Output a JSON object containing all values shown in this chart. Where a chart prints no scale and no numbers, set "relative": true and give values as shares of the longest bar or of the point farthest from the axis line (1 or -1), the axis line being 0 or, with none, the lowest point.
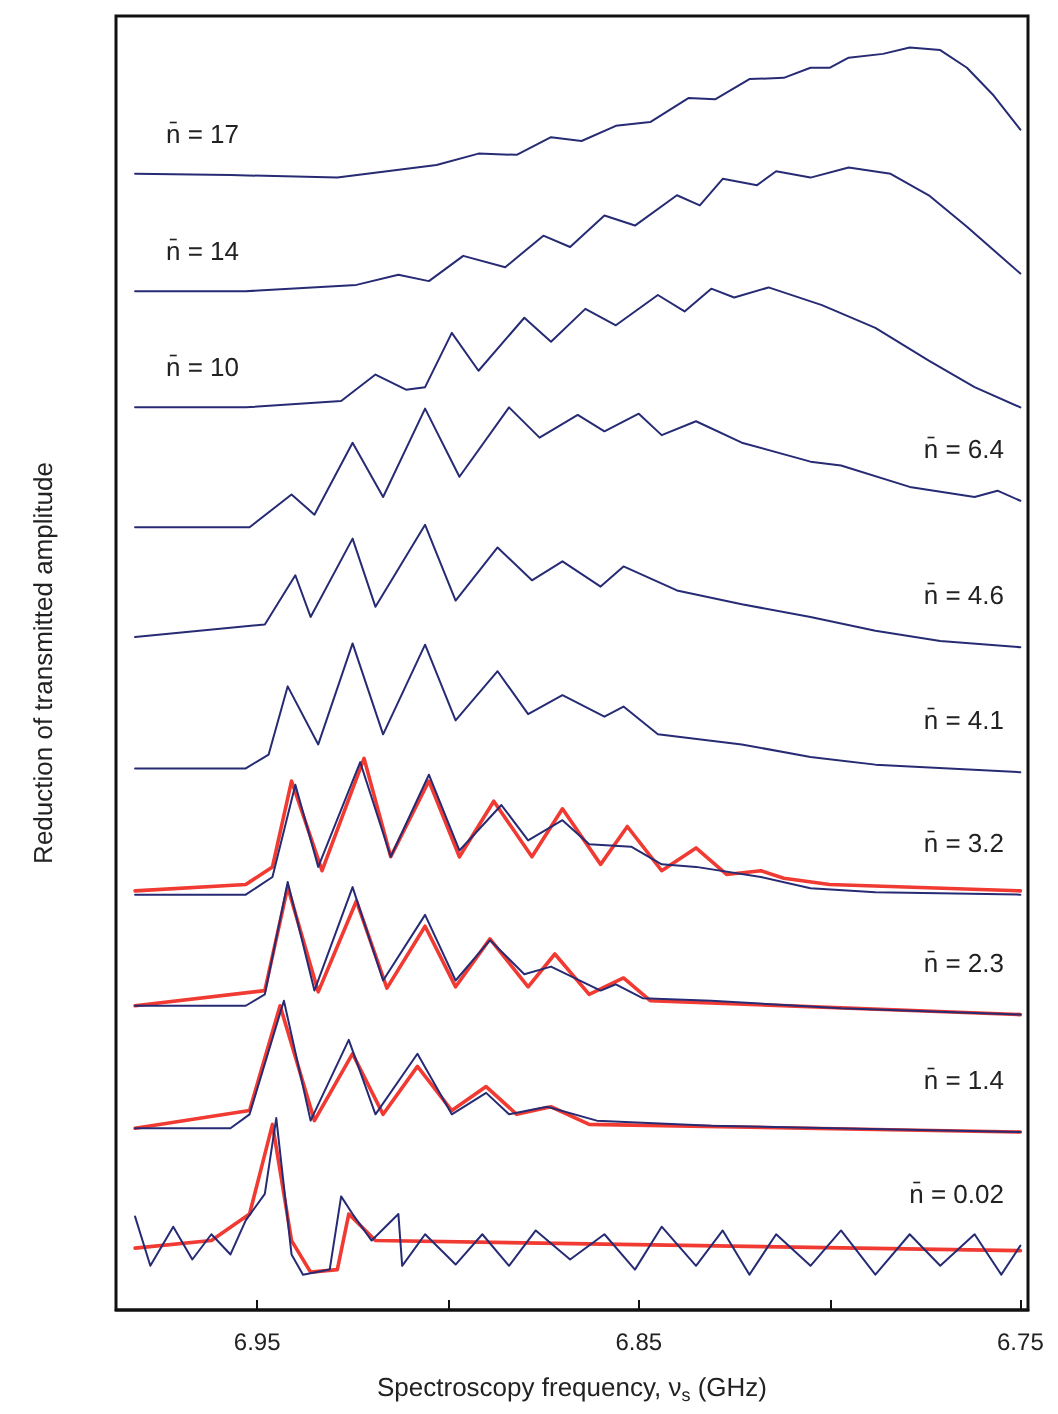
{
  "chart_data": {
    "type": "line",
    "relative": true,
    "marker": "none",
    "line_style": "solid",
    "tick_labels": "x",
    "xlabel": "Spectroscopy frequency, ν$_{s}$ (GHz)",
    "ylabel": "Reduction of transmitted amplitude",
    "xlim": [
      6.987,
      6.748
    ],
    "xticks": [
      6.95,
      {
        "value": 6.9,
        "label": null
      },
      6.85,
      {
        "value": 6.8,
        "label": null
      },
      6.75
    ],
    "series": [
      {
        "name": "n̄ = 17",
        "color": "#262b74",
        "x": [
          6.982,
          6.957,
          6.929,
          6.903,
          6.892,
          6.882,
          6.873,
          6.865,
          6.856,
          6.847,
          6.837,
          6.83,
          6.821,
          6.812,
          6.805,
          6.8,
          6.795,
          6.786,
          6.779,
          6.771,
          6.764,
          6.757,
          6.75
        ],
        "values": [
          0.9,
          0.899,
          0.897,
          0.907,
          0.916,
          0.915,
          0.929,
          0.926,
          0.938,
          0.941,
          0.96,
          0.959,
          0.975,
          0.976,
          0.984,
          0.984,
          0.992,
          0.995,
          1.0,
          0.998,
          0.984,
          0.962,
          0.935
        ]
      },
      {
        "name": "n̄ = 14",
        "color": "#262b74",
        "x": [
          6.982,
          6.953,
          6.924,
          6.913,
          6.905,
          6.896,
          6.885,
          6.875,
          6.868,
          6.859,
          6.851,
          6.84,
          6.834,
          6.828,
          6.819,
          6.814,
          6.805,
          6.795,
          6.784,
          6.774,
          6.764,
          6.75
        ],
        "values": [
          0.807,
          0.807,
          0.812,
          0.82,
          0.815,
          0.835,
          0.826,
          0.851,
          0.842,
          0.867,
          0.859,
          0.883,
          0.875,
          0.896,
          0.891,
          0.902,
          0.897,
          0.905,
          0.9,
          0.883,
          0.858,
          0.821
        ]
      },
      {
        "name": "n̄ = 10",
        "color": "#262b74",
        "x": [
          6.982,
          6.953,
          6.928,
          6.919,
          6.911,
          6.906,
          6.899,
          6.892,
          6.88,
          6.873,
          6.864,
          6.856,
          6.845,
          6.838,
          6.831,
          6.825,
          6.816,
          6.802,
          6.788,
          6.774,
          6.762,
          6.75
        ],
        "values": [
          0.715,
          0.715,
          0.72,
          0.741,
          0.729,
          0.731,
          0.774,
          0.744,
          0.786,
          0.767,
          0.793,
          0.78,
          0.804,
          0.791,
          0.809,
          0.802,
          0.81,
          0.796,
          0.778,
          0.752,
          0.731,
          0.715
        ]
      },
      {
        "name": "n̄ = 6.4",
        "color": "#262b74",
        "x": [
          6.982,
          6.952,
          6.941,
          6.935,
          6.925,
          6.917,
          6.906,
          6.897,
          6.884,
          6.876,
          6.866,
          6.859,
          6.85,
          6.844,
          6.835,
          6.823,
          6.805,
          6.797,
          6.779,
          6.762,
          6.756,
          6.75
        ],
        "values": [
          0.62,
          0.62,
          0.646,
          0.63,
          0.687,
          0.644,
          0.714,
          0.66,
          0.715,
          0.691,
          0.709,
          0.696,
          0.71,
          0.693,
          0.704,
          0.687,
          0.672,
          0.669,
          0.652,
          0.644,
          0.649,
          0.641
        ]
      },
      {
        "name": "n̄ = 4.6",
        "color": "#262b74",
        "x": [
          6.982,
          6.948,
          6.94,
          6.936,
          6.925,
          6.919,
          6.906,
          6.898,
          6.887,
          6.878,
          6.87,
          6.86,
          6.854,
          6.84,
          6.823,
          6.805,
          6.788,
          6.771,
          6.75
        ],
        "values": [
          0.533,
          0.543,
          0.582,
          0.549,
          0.611,
          0.557,
          0.622,
          0.562,
          0.604,
          0.578,
          0.593,
          0.573,
          0.589,
          0.57,
          0.559,
          0.549,
          0.538,
          0.53,
          0.525
        ]
      },
      {
        "name": "n̄ = 4.1",
        "color": "#262b74",
        "x": [
          6.982,
          6.953,
          6.947,
          6.942,
          6.934,
          6.925,
          6.917,
          6.906,
          6.898,
          6.887,
          6.879,
          6.87,
          6.859,
          6.854,
          6.845,
          6.823,
          6.805,
          6.788,
          6.75
        ],
        "values": [
          0.429,
          0.429,
          0.44,
          0.494,
          0.448,
          0.528,
          0.456,
          0.527,
          0.467,
          0.506,
          0.472,
          0.487,
          0.47,
          0.478,
          0.456,
          0.448,
          0.438,
          0.432,
          0.426
        ]
      },
      {
        "color": "#f03a32",
        "x": [
          6.982,
          6.953,
          6.946,
          6.941,
          6.933,
          6.922,
          6.915,
          6.905,
          6.897,
          6.888,
          6.878,
          6.87,
          6.86,
          6.853,
          6.844,
          6.835,
          6.827,
          6.818,
          6.812,
          6.8,
          6.75
        ],
        "values": [
          0.332,
          0.337,
          0.351,
          0.419,
          0.348,
          0.437,
          0.359,
          0.419,
          0.359,
          0.403,
          0.359,
          0.397,
          0.353,
          0.383,
          0.348,
          0.366,
          0.345,
          0.348,
          0.342,
          0.337,
          0.332
        ]
      },
      {
        "name": "n̄ = 3.2",
        "color": "#262b74",
        "x": [
          6.982,
          6.953,
          6.946,
          6.94,
          6.934,
          6.923,
          6.915,
          6.905,
          6.897,
          6.886,
          6.879,
          6.87,
          6.863,
          6.852,
          6.844,
          6.835,
          6.818,
          6.805,
          6.788,
          6.75
        ],
        "values": [
          0.329,
          0.329,
          0.343,
          0.416,
          0.351,
          0.434,
          0.359,
          0.424,
          0.364,
          0.4,
          0.372,
          0.388,
          0.369,
          0.367,
          0.353,
          0.351,
          0.343,
          0.334,
          0.331,
          0.329
        ]
      },
      {
        "color": "#f03a32",
        "x": [
          6.982,
          6.948,
          6.942,
          6.934,
          6.924,
          6.916,
          6.906,
          6.898,
          6.889,
          6.879,
          6.872,
          6.863,
          6.854,
          6.847,
          6.75
        ],
        "values": [
          0.241,
          0.253,
          0.335,
          0.252,
          0.324,
          0.255,
          0.304,
          0.256,
          0.294,
          0.256,
          0.282,
          0.25,
          0.263,
          0.245,
          0.234
        ]
      },
      {
        "name": "n̄ = 2.3",
        "color": "#262b74",
        "x": [
          6.982,
          6.953,
          6.948,
          6.942,
          6.935,
          6.925,
          6.917,
          6.906,
          6.898,
          6.889,
          6.88,
          6.873,
          6.86,
          6.856,
          6.849,
          6.831,
          6.797,
          6.75
        ],
        "values": [
          0.241,
          0.241,
          0.25,
          0.339,
          0.253,
          0.335,
          0.261,
          0.313,
          0.261,
          0.293,
          0.266,
          0.272,
          0.253,
          0.258,
          0.247,
          0.245,
          0.239,
          0.234
        ]
      },
      {
        "color": "#f03a32",
        "x": [
          6.982,
          6.952,
          6.944,
          6.935,
          6.925,
          6.917,
          6.908,
          6.899,
          6.89,
          6.882,
          6.873,
          6.863,
          6.75
        ],
        "values": [
          0.144,
          0.158,
          0.241,
          0.15,
          0.203,
          0.155,
          0.193,
          0.158,
          0.177,
          0.155,
          0.161,
          0.147,
          0.141
        ]
      },
      {
        "name": "n̄ = 1.4",
        "color": "#262b74",
        "x": [
          6.982,
          6.957,
          6.952,
          6.943,
          6.936,
          6.926,
          6.919,
          6.908,
          6.899,
          6.89,
          6.884,
          6.874,
          6.861,
          6.831,
          6.75
        ],
        "values": [
          0.144,
          0.144,
          0.155,
          0.245,
          0.15,
          0.214,
          0.155,
          0.203,
          0.155,
          0.172,
          0.155,
          0.161,
          0.15,
          0.146,
          0.141
        ]
      },
      {
        "color": "#f03a32",
        "x": [
          6.982,
          6.962,
          6.952,
          6.946,
          6.941,
          6.936,
          6.929,
          6.926,
          6.919,
          6.75
        ],
        "values": [
          0.049,
          0.055,
          0.076,
          0.147,
          0.055,
          0.03,
          0.032,
          0.076,
          0.055,
          0.047
        ]
      },
      {
        "name": "n̄ = 0.02",
        "color": "#262b74",
        "x": [
          6.982,
          6.978,
          6.972,
          6.967,
          6.962,
          6.957,
          6.953,
          6.948,
          6.945,
          6.941,
          6.938,
          6.931,
          6.928,
          6.925,
          6.92,
          6.913,
          6.912,
          6.906,
          6.898,
          6.891,
          6.884,
          6.877,
          6.868,
          6.859,
          6.851,
          6.844,
          6.835,
          6.828,
          6.821,
          6.814,
          6.805,
          6.797,
          6.788,
          6.779,
          6.771,
          6.762,
          6.755,
          6.75
        ],
        "values": [
          0.074,
          0.035,
          0.066,
          0.04,
          0.06,
          0.044,
          0.071,
          0.092,
          0.152,
          0.044,
          0.028,
          0.032,
          0.09,
          0.076,
          0.055,
          0.076,
          0.035,
          0.06,
          0.036,
          0.06,
          0.035,
          0.063,
          0.04,
          0.06,
          0.032,
          0.066,
          0.035,
          0.063,
          0.028,
          0.06,
          0.035,
          0.063,
          0.028,
          0.06,
          0.035,
          0.06,
          0.028,
          0.051
        ]
      }
    ]
  }
}
